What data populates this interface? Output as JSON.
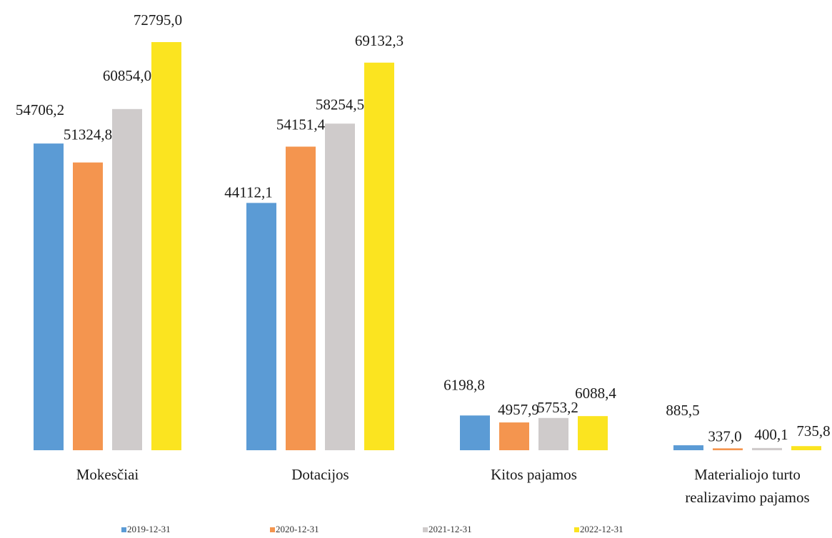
{
  "chart_data": {
    "type": "bar",
    "categories": [
      [
        "Mokesčiai"
      ],
      [
        "Dotacijos"
      ],
      [
        "Kitos pajamos"
      ],
      [
        "Materialiojo turto",
        "realizavimo pajamos"
      ]
    ],
    "series": [
      {
        "name": "2019-12-31",
        "color": "#5b9bd5",
        "values": [
          54706.2,
          44112.1,
          6198.8,
          885.5
        ],
        "labels": [
          "54706,2",
          "44112,1",
          "6198,8",
          "885,5"
        ]
      },
      {
        "name": "2020-12-31",
        "color": "#f4954f",
        "values": [
          51324.8,
          54151.4,
          4957.9,
          337.0
        ],
        "labels": [
          "51324,8",
          "54151,4",
          "4957,9",
          "337,0"
        ]
      },
      {
        "name": "2021-12-31",
        "color": "#cfcbcb",
        "values": [
          60854.0,
          58254.5,
          5753.2,
          400.1
        ],
        "labels": [
          "60854,0",
          "58254,5",
          "5753,2",
          "400,1"
        ]
      },
      {
        "name": "2022-12-31",
        "color": "#fbe420",
        "values": [
          72795.0,
          69132.3,
          6088.4,
          735.8
        ],
        "labels": [
          "72795,0",
          "69132,3",
          "6088,4",
          "735,8"
        ]
      }
    ],
    "ylim": [
      0,
      72795.0
    ],
    "grid": false,
    "legend_position": "bottom"
  }
}
